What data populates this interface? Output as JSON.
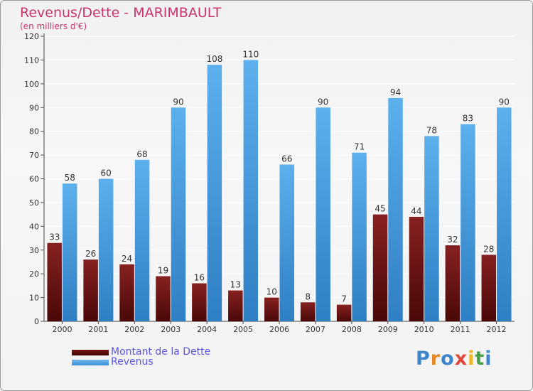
{
  "header": {
    "title": "Revenus/Dette - MARIMBAULT",
    "subtitle": "(en milliers d'€)"
  },
  "legend": [
    {
      "label": "Montant de la Dette",
      "color": "#7a1414"
    },
    {
      "label": "Revenus",
      "color": "#4ea3e3"
    }
  ],
  "logo": {
    "text": "Proxiti",
    "colors": [
      "#3e86c9",
      "#e58a2a",
      "#3e86c9",
      "#e2483a",
      "#f2b526",
      "#48a24a",
      "#3e86c9"
    ]
  },
  "chart_data": {
    "type": "bar",
    "categories": [
      "2000",
      "2001",
      "2002",
      "2003",
      "2004",
      "2005",
      "2006",
      "2007",
      "2008",
      "2009",
      "2010",
      "2011",
      "2012"
    ],
    "series": [
      {
        "name": "Montant de la Dette",
        "color": "#7a1414",
        "values": [
          33,
          26,
          24,
          19,
          16,
          13,
          10,
          8,
          7,
          45,
          44,
          32,
          28
        ]
      },
      {
        "name": "Revenus",
        "color": "#4ea3e3",
        "values": [
          58,
          60,
          68,
          90,
          108,
          110,
          66,
          90,
          71,
          94,
          78,
          83,
          90
        ]
      }
    ],
    "ylim": [
      0,
      120
    ],
    "yticks": [
      0,
      10,
      20,
      30,
      40,
      50,
      60,
      70,
      80,
      90,
      100,
      110,
      120
    ],
    "grid": true,
    "legend_position": "bottom-left",
    "show_value_labels": true
  }
}
